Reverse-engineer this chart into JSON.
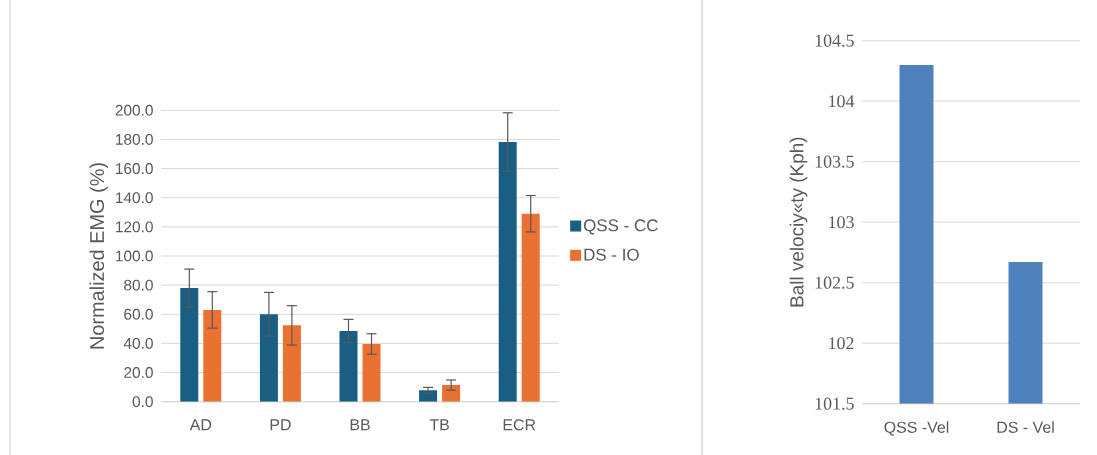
{
  "chart_data": [
    {
      "type": "bar",
      "ylabel": "Normalized EMG (%)",
      "categories": [
        "AD",
        "PD",
        "BB",
        "TB",
        "ECR"
      ],
      "series": [
        {
          "name": "QSS - CC",
          "color": "#1b5e83",
          "values": [
            78,
            60,
            48.5,
            7.8,
            178.3
          ],
          "errors": [
            13,
            15,
            8,
            2,
            20
          ]
        },
        {
          "name": "DS - IO",
          "color": "#e97132",
          "values": [
            63,
            52.4,
            39.6,
            11.4,
            129
          ],
          "errors": [
            12.5,
            13.5,
            7,
            3.5,
            12.5
          ]
        }
      ],
      "ylim": [
        0,
        200
      ],
      "yticks": [
        {
          "value": 0,
          "label": "0.0"
        },
        {
          "value": 20,
          "label": "20.0"
        },
        {
          "value": 40,
          "label": "40.0"
        },
        {
          "value": 60,
          "label": "60.0"
        },
        {
          "value": 80,
          "label": "80.0"
        },
        {
          "value": 100,
          "label": "100.0"
        },
        {
          "value": 120,
          "label": "120.0"
        },
        {
          "value": 140,
          "label": "140.0"
        },
        {
          "value": 160,
          "label": "160.0"
        },
        {
          "value": 180,
          "label": "180.0"
        },
        {
          "value": 200,
          "label": "200.0"
        }
      ],
      "grid": "y",
      "legend": "right"
    },
    {
      "type": "bar",
      "ylabel": "Ball velociy«ty (Kph)",
      "categories": [
        "QSS -Vel",
        "DS - Vel"
      ],
      "values": [
        104.3,
        102.67
      ],
      "color": "#4f81bd",
      "ylim": [
        101.5,
        104.5
      ],
      "yticks": [
        101.5,
        102,
        102.5,
        103,
        103.5,
        104,
        104.5
      ],
      "grid": "y",
      "legend": false
    }
  ]
}
